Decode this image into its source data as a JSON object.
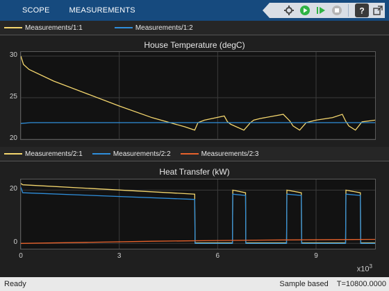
{
  "toolstrip": {
    "tabs": [
      "SCOPE",
      "MEASUREMENTS"
    ],
    "tools": [
      {
        "icon": "settings-gear-icon"
      },
      {
        "icon": "run-icon",
        "color": "#2fb344"
      },
      {
        "icon": "step-forward-icon",
        "color": "#2fb344"
      },
      {
        "icon": "stop-icon",
        "color": "#9a9a9a"
      },
      {
        "icon": "help-icon"
      },
      {
        "icon": "undock-icon"
      }
    ]
  },
  "plots": [
    {
      "legend": [
        {
          "label": "Measurements/1:1",
          "color": "#f5d76e"
        },
        {
          "label": "Measurements/1:2",
          "color": "#2f8fdc"
        }
      ],
      "title": "House Temperature (degC)",
      "chart_data": {
        "type": "line",
        "title": "House Temperature (degC)",
        "xlim": [
          0,
          10800
        ],
        "ylim": [
          20,
          30.5
        ],
        "yticks": [
          20,
          25,
          30
        ],
        "xticks": [
          0,
          3000,
          6000,
          9000
        ],
        "grid": true,
        "series": [
          {
            "name": "Measurements/1:1",
            "color": "#f5d76e",
            "x": [
              0,
              80,
              250,
              1000,
              2000,
              3000,
              4000,
              5000,
              5300,
              5400,
              5600,
              6200,
              6300,
              6400,
              6800,
              7000,
              7100,
              7300,
              8000,
              8200,
              8300,
              8500,
              8700,
              9000,
              9500,
              9800,
              9900,
              10000,
              10200,
              10400,
              10800
            ],
            "y": [
              30.0,
              29.0,
              28.4,
              27.0,
              25.5,
              24.0,
              22.6,
              21.5,
              21.1,
              22.0,
              22.3,
              22.8,
              22.1,
              21.8,
              21.1,
              22.0,
              22.3,
              22.5,
              23.0,
              22.2,
              21.6,
              21.1,
              22.0,
              22.3,
              22.6,
              23.0,
              22.2,
              21.6,
              21.1,
              22.1,
              22.3
            ]
          },
          {
            "name": "Measurements/1:2",
            "color": "#2f8fdc",
            "x": [
              0,
              300,
              10800
            ],
            "y": [
              21.9,
              22.0,
              22.0
            ]
          }
        ]
      }
    },
    {
      "legend": [
        {
          "label": "Measurements/2:1",
          "color": "#f5d76e"
        },
        {
          "label": "Measurements/2:2",
          "color": "#2f8fdc"
        },
        {
          "label": "Measurements/2:3",
          "color": "#e8622b"
        }
      ],
      "title": "Heat Transfer (kW)",
      "chart_data": {
        "type": "line",
        "title": "Heat Transfer (kW)",
        "xlim": [
          0,
          10800
        ],
        "ylim": [
          -2,
          24
        ],
        "yticks": [
          0,
          20
        ],
        "xticks": [
          0,
          3000,
          6000,
          9000
        ],
        "xlabel_exponent": "x10",
        "xlabel_exponent_power": "3",
        "xtick_labels": [
          "0",
          "3",
          "6",
          "9"
        ],
        "grid": true,
        "series": [
          {
            "name": "Measurements/2:1",
            "color": "#f5d76e",
            "x": [
              0,
              60,
              5300,
              5310,
              6450,
              6460,
              6850,
              6860,
              8100,
              8110,
              8550,
              8560,
              9900,
              9910,
              10350,
              10360,
              10800
            ],
            "y": [
              22.5,
              22.0,
              18.5,
              0.2,
              0.2,
              20.0,
              19.0,
              0.2,
              0.2,
              20.0,
              19.0,
              0.2,
              0.2,
              20.0,
              19.0,
              0.2,
              0.2
            ]
          },
          {
            "name": "Measurements/2:2",
            "color": "#2f8fdc",
            "x": [
              0,
              60,
              5300,
              5310,
              6450,
              6460,
              6850,
              6860,
              8100,
              8110,
              8550,
              8560,
              9900,
              9910,
              10350,
              10360,
              10800
            ],
            "y": [
              21.0,
              19.0,
              16.5,
              0.0,
              0.0,
              18.5,
              18.0,
              0.0,
              0.0,
              18.5,
              18.0,
              0.0,
              0.0,
              18.5,
              18.0,
              0.0,
              0.0
            ]
          },
          {
            "name": "Measurements/2:3",
            "color": "#e8622b",
            "x": [
              0,
              2000,
              4000,
              6000,
              8000,
              10800
            ],
            "y": [
              0.0,
              0.4,
              0.8,
              1.1,
              1.3,
              1.5
            ]
          }
        ]
      }
    }
  ],
  "status": {
    "left": "Ready",
    "mode": "Sample based",
    "time": "T=10800.0000"
  }
}
